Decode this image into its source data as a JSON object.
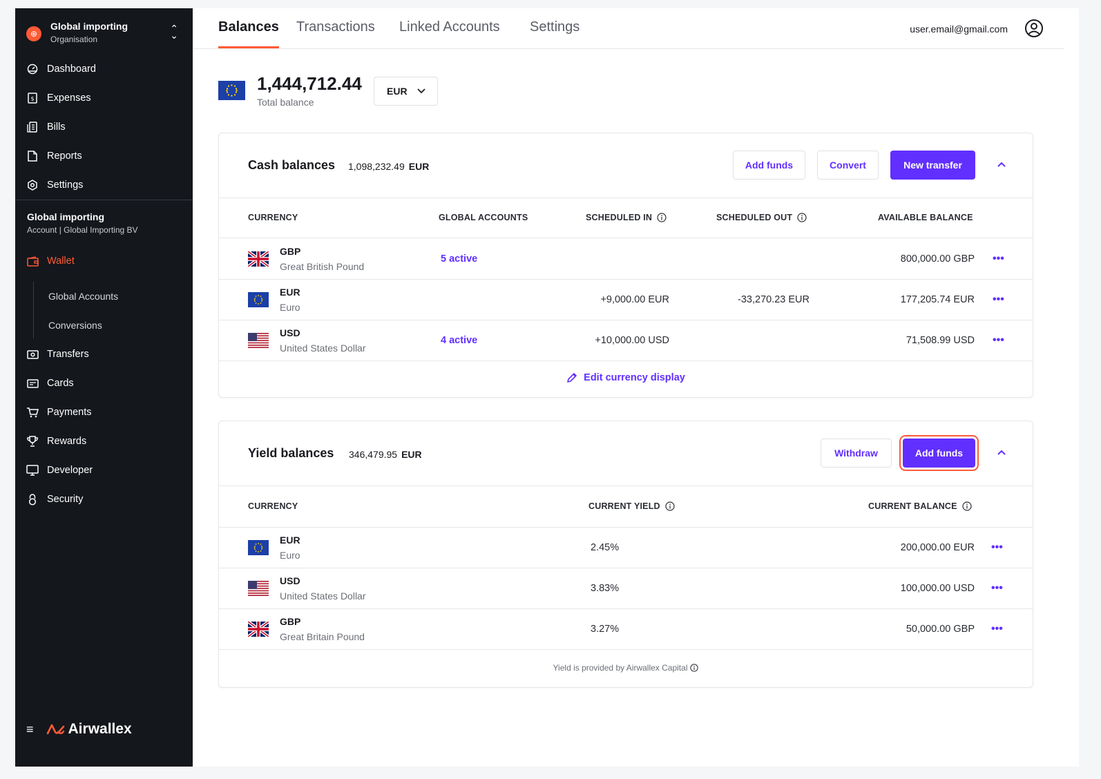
{
  "org": {
    "name": "Global importing",
    "subtitle": "Organisation"
  },
  "sidebar": {
    "items": [
      {
        "label": "Dashboard",
        "icon": "dashboard-icon"
      },
      {
        "label": "Expenses",
        "icon": "expenses-icon"
      },
      {
        "label": "Bills",
        "icon": "bills-icon"
      },
      {
        "label": "Reports",
        "icon": "reports-icon"
      },
      {
        "label": "Settings",
        "icon": "settings-icon"
      }
    ],
    "account": {
      "name": "Global importing",
      "subtitle": "Account | Global Importing BV"
    },
    "wallet": {
      "label": "Wallet",
      "icon": "wallet-icon",
      "active": true
    },
    "wallet_sub": [
      "Global Accounts",
      "Conversions"
    ],
    "items2": [
      {
        "label": "Transfers",
        "icon": "transfers-icon"
      },
      {
        "label": "Cards",
        "icon": "cards-icon"
      },
      {
        "label": "Payments",
        "icon": "cart-icon"
      },
      {
        "label": "Rewards",
        "icon": "trophy-icon"
      },
      {
        "label": "Developer",
        "icon": "monitor-icon"
      },
      {
        "label": "Security",
        "icon": "lock-icon"
      }
    ],
    "brand": "Airwallex"
  },
  "header": {
    "tabs": [
      "Balances",
      "Transactions",
      "Linked Accounts",
      "Settings"
    ],
    "active_tab": "Balances",
    "email": "user.email@gmail.com"
  },
  "total": {
    "amount": "1,444,712.44",
    "label": "Total balance",
    "currency": "EUR"
  },
  "cash": {
    "title": "Cash balances",
    "total": "1,098,232.49",
    "total_currency": "EUR",
    "buttons": {
      "add_funds": "Add funds",
      "convert": "Convert",
      "new_transfer": "New transfer"
    },
    "columns": [
      "CURRENCY",
      "GLOBAL ACCOUNTS",
      "SCHEDULED IN",
      "SCHEDULED OUT",
      "AVAILABLE BALANCE"
    ],
    "rows": [
      {
        "code": "GBP",
        "name": "Great British Pound",
        "flag": "gb",
        "global": "5 active",
        "sched_in": "",
        "sched_out": "",
        "balance": "800,000.00 GBP"
      },
      {
        "code": "EUR",
        "name": "Euro",
        "flag": "eu",
        "global": "",
        "sched_in": "+9,000.00 EUR",
        "sched_out": "-33,270.23 EUR",
        "balance": "177,205.74 EUR"
      },
      {
        "code": "USD",
        "name": "United States Dollar",
        "flag": "us",
        "global": "4 active",
        "sched_in": "+10,000.00 USD",
        "sched_out": "",
        "balance": "71,508.99 USD"
      }
    ],
    "edit_link": "Edit currency display"
  },
  "yield": {
    "title": "Yield balances",
    "total": "346,479.95",
    "total_currency": "EUR",
    "buttons": {
      "withdraw": "Withdraw",
      "add_funds": "Add funds"
    },
    "columns": [
      "CURRENCY",
      "CURRENT YIELD",
      "CURRENT BALANCE"
    ],
    "rows": [
      {
        "code": "EUR",
        "name": "Euro",
        "flag": "eu",
        "yield": "2.45%",
        "balance": "200,000.00 EUR"
      },
      {
        "code": "USD",
        "name": "United States Dollar",
        "flag": "us",
        "yield": "3.83%",
        "balance": "100,000.00 USD"
      },
      {
        "code": "GBP",
        "name": "Great Britain Pound",
        "flag": "gb",
        "yield": "3.27%",
        "balance": "50,000.00 GBP"
      }
    ],
    "footnote": "Yield is provided by Airwallex Capital"
  },
  "colors": {
    "accent": "#612fff",
    "brand": "#ff5a36",
    "sidebar_bg": "#14171c"
  }
}
